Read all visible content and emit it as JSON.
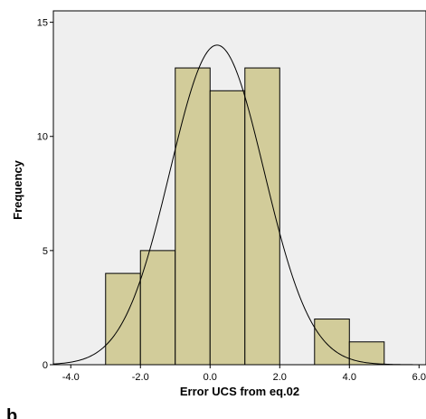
{
  "chart_data": {
    "type": "bar",
    "title": "",
    "xlabel": "Error UCS from eq.02",
    "ylabel": "Frequency",
    "xlim": [
      -4.5,
      6.2
    ],
    "ylim": [
      0,
      15.5
    ],
    "x_ticks": [
      -4.0,
      -2.0,
      0.0,
      2.0,
      4.0,
      6.0
    ],
    "x_tick_labels": [
      "-4.0",
      "-2.0",
      "0.0",
      "2.0",
      "4.0",
      "6.0"
    ],
    "y_ticks": [
      0,
      5,
      10,
      15
    ],
    "y_tick_labels": [
      "0",
      "5",
      "10",
      "15"
    ],
    "bins": [
      {
        "x0": -3.0,
        "x1": -2.0,
        "count": 4
      },
      {
        "x0": -2.0,
        "x1": -1.0,
        "count": 5
      },
      {
        "x0": -1.0,
        "x1": 0.0,
        "count": 13
      },
      {
        "x0": 0.0,
        "x1": 1.0,
        "count": 12
      },
      {
        "x0": 1.0,
        "x1": 2.0,
        "count": 13
      },
      {
        "x0": 2.0,
        "x1": 3.0,
        "count": 0
      },
      {
        "x0": 3.0,
        "x1": 4.0,
        "count": 2
      },
      {
        "x0": 4.0,
        "x1": 5.0,
        "count": 1
      }
    ],
    "normal_curve": {
      "mean": 0.2,
      "peak": 14.0,
      "sd": 1.35
    },
    "grid": false,
    "legend": "none",
    "colors": {
      "bar_fill": "#d2cc9a",
      "bar_stroke": "#000000",
      "plot_background": "#efefef",
      "curve": "#000000"
    }
  },
  "figure_fragments": {
    "bottom_left_mark": "b"
  }
}
